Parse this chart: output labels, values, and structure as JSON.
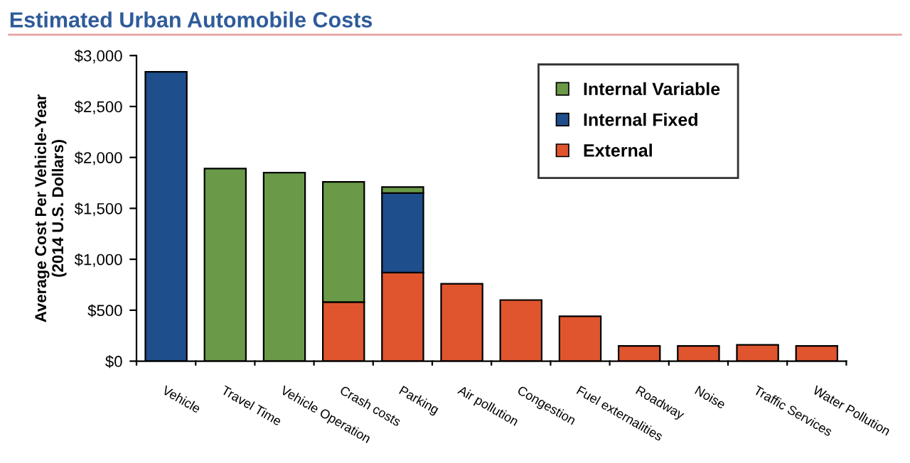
{
  "chart_data": {
    "type": "bar",
    "title": "Estimated Urban Automobile Costs",
    "ylabel": "Average Cost Per Vehicle-Year\n(2014 U.S. Dollars)",
    "categories": [
      "Vehicle",
      "Travel Time",
      "Vehicle Operation",
      "Crash costs",
      "Parking",
      "Air pollution",
      "Congestion",
      "Fuel externalities",
      "Roadway",
      "Noise",
      "Traffic Services",
      "Water Pollution"
    ],
    "stacked": true,
    "series": [
      {
        "name": "External",
        "color": "#e0552e",
        "values": [
          null,
          null,
          null,
          580,
          870,
          760,
          600,
          440,
          150,
          150,
          160,
          150
        ]
      },
      {
        "name": "Internal Fixed",
        "color": "#1f4e8c",
        "values": [
          2840,
          null,
          null,
          null,
          780,
          null,
          null,
          null,
          null,
          null,
          null,
          null
        ]
      },
      {
        "name": "Internal Variable",
        "color": "#6a9a48",
        "values": [
          null,
          1890,
          1850,
          1180,
          60,
          null,
          null,
          null,
          null,
          null,
          null,
          null
        ]
      }
    ],
    "ylim": [
      0,
      3000
    ],
    "yticks": [
      {
        "value": 0,
        "label": "$0"
      },
      {
        "value": 500,
        "label": "$500"
      },
      {
        "value": 1000,
        "label": "$1,000"
      },
      {
        "value": 1500,
        "label": "$1,500"
      },
      {
        "value": 2000,
        "label": "$2,000"
      },
      {
        "value": 2500,
        "label": "$2,500"
      },
      {
        "value": 3000,
        "label": "$3,000"
      }
    ],
    "legend": "top right",
    "grid": false
  }
}
